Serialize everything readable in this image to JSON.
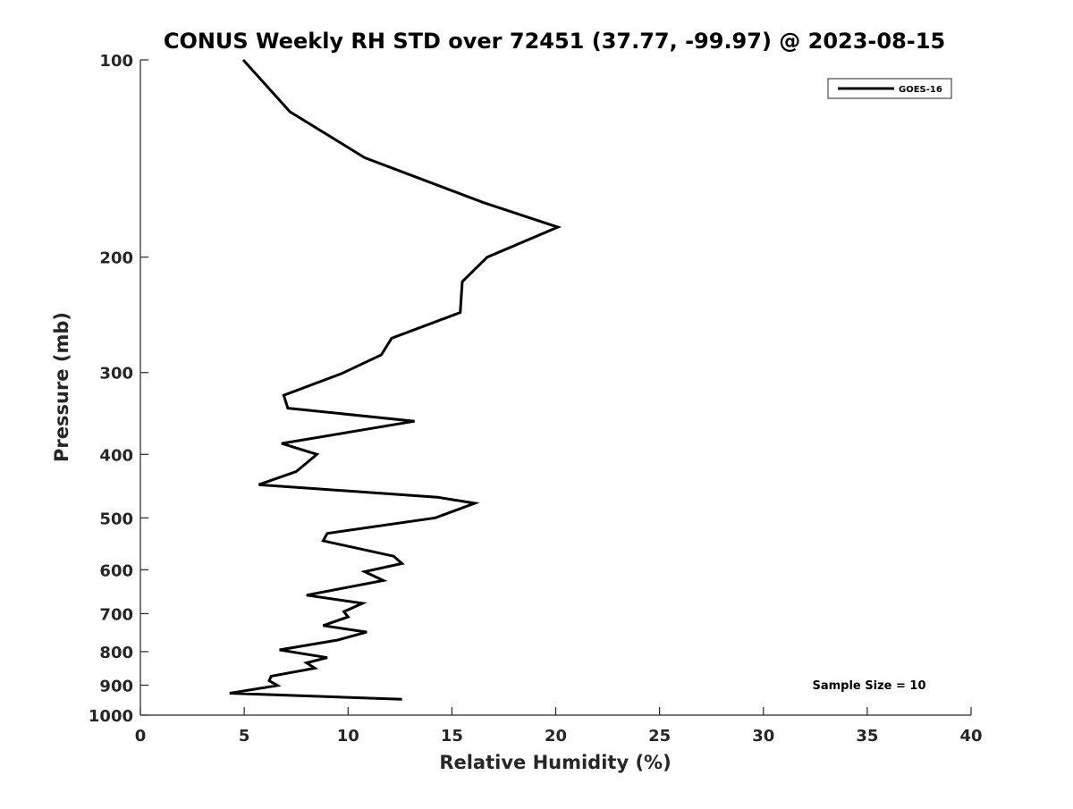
{
  "chart_data": {
    "type": "line",
    "title": "CONUS Weekly RH STD over 72451 (37.77, -99.97) @ 2023-08-15",
    "xlabel": "Relative Humidity (%)",
    "ylabel": "Pressure (mb)",
    "xlim": [
      0,
      40
    ],
    "ylim": [
      100,
      1000
    ],
    "yscale": "log",
    "y_reversed": true,
    "grid": false,
    "legend_position": "top-right",
    "x_ticks": [
      "0",
      "5",
      "10",
      "15",
      "20",
      "25",
      "30",
      "35",
      "40"
    ],
    "y_ticks": [
      "100",
      "200",
      "300",
      "400",
      "500",
      "600",
      "700",
      "800",
      "900",
      "1000"
    ],
    "annotation": "Sample Size = 10",
    "series": [
      {
        "name": "GOES-16",
        "color": "#000000",
        "x": [
          4.95,
          7.2,
          10.8,
          16.5,
          20.1,
          16.7,
          15.5,
          15.4,
          12.1,
          11.6,
          9.7,
          6.9,
          7.1,
          13.2,
          6.8,
          8.5,
          7.5,
          5.7,
          14.3,
          16.1,
          14.2,
          9.0,
          8.8,
          12.2,
          12.6,
          10.8,
          11.7,
          8.0,
          10.7,
          9.8,
          10.0,
          8.8,
          10.9,
          9.5,
          6.7,
          9.0,
          8.0,
          8.4,
          6.3,
          6.2,
          6.6,
          4.3,
          12.6
        ],
        "y": [
          100,
          120,
          141,
          165,
          180,
          200,
          218,
          243,
          266,
          282,
          301,
          325,
          340,
          356,
          385,
          400,
          425,
          445,
          465,
          475,
          500,
          528,
          542,
          572,
          587,
          604,
          623,
          656,
          675,
          695,
          708,
          730,
          747,
          768,
          795,
          817,
          832,
          848,
          872,
          886,
          901,
          926,
          946
        ]
      }
    ]
  }
}
